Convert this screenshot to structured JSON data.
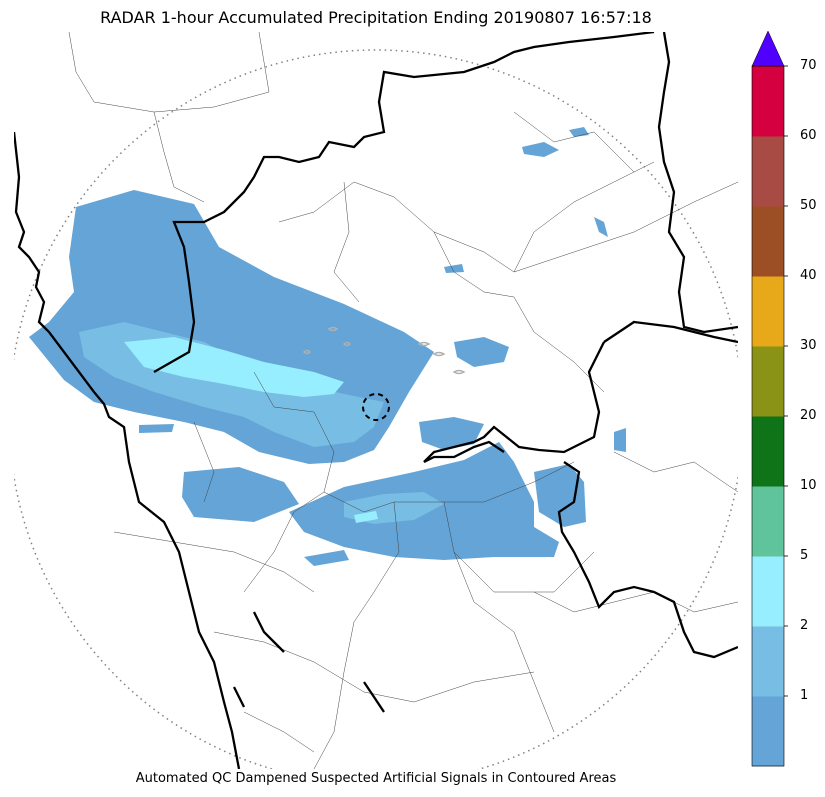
{
  "title": "RADAR 1-hour Accumulated Precipitation Ending 20190807 16:57:18",
  "footer": "Automated QC Dampened Suspected Artificial Signals in Contoured Areas",
  "colorbar": {
    "labels": [
      "1",
      "2",
      "5",
      "10",
      "20",
      "30",
      "40",
      "50",
      "60",
      "70"
    ],
    "colors": [
      "#64a4d6",
      "#78bde3",
      "#96eefe",
      "#5fc49b",
      "#0f7318",
      "#8a9316",
      "#e7a819",
      "#9c4f25",
      "#a84b44",
      "#d4003f"
    ],
    "extend_color": "#5000ff"
  },
  "map": {
    "range_ring": "dotted range circle",
    "colors": {
      "light_rain": "#64a4d6",
      "moderate_rain": "#78bde3",
      "heavy_rain": "#96eefe",
      "qc_contour": "#b0b0b0"
    }
  }
}
